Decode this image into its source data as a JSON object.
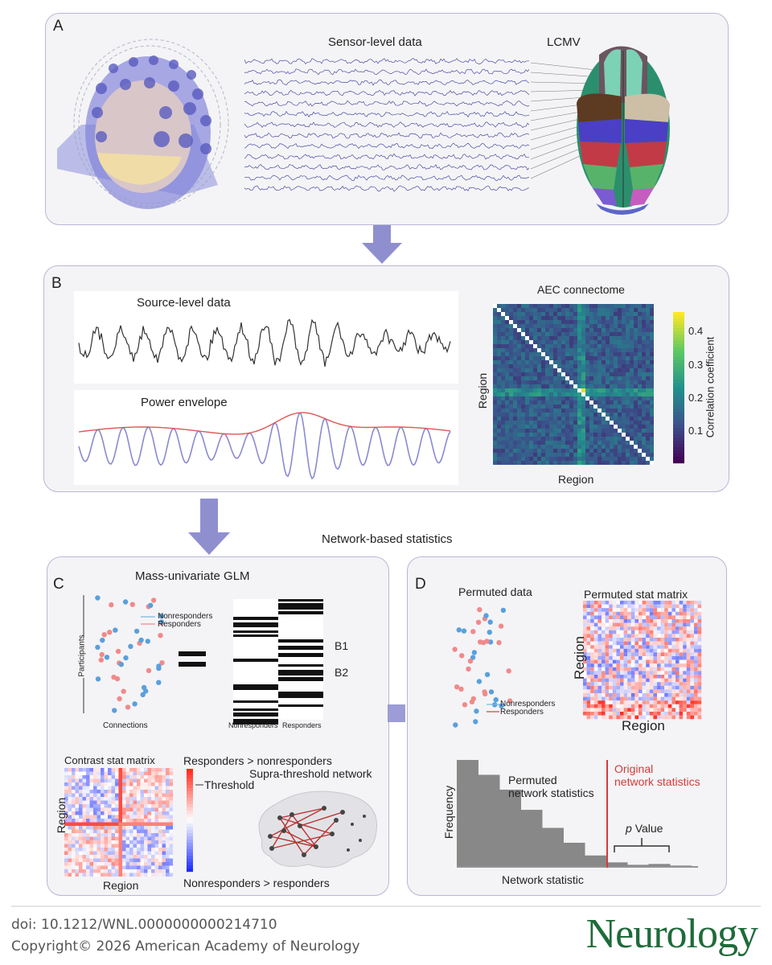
{
  "panel_a": {
    "label": "A",
    "sensor_title": "Sensor-level data",
    "lcmv_title": "LCMV"
  },
  "panel_b": {
    "label": "B",
    "source_title": "Source-level data",
    "envelope_title": "Power envelope",
    "matrix_title": "AEC connectome",
    "y_axis": "Region",
    "x_axis": "Region",
    "colorbar_label": "Correlation coefficient",
    "colorbar_ticks": [
      "0.4",
      "0.3",
      "0.2",
      "0.1"
    ]
  },
  "section_title": "Network-based statistics",
  "panel_c": {
    "label": "C",
    "glm_title": "Mass-univariate GLM",
    "participants": "Participants",
    "connections": "Connections",
    "legend_nonresponders": "Nonresponders",
    "legend_responders": "Responders",
    "b1": "B1",
    "b2": "B2",
    "design_col1": "Nonresponders",
    "design_col2": "Responders",
    "contrast_title": "Contrast stat matrix",
    "contrast_y": "Region",
    "contrast_x": "Region",
    "resp_gt": "Responders > nonresponders",
    "threshold": "Threshold",
    "nonresp_gt": "Nonresponders > responders",
    "supra": "Supra-threshold network"
  },
  "panel_d": {
    "label": "D",
    "permuted_data": "Permuted data",
    "legend_nonresponders": "Nonresponders",
    "legend_responders": "Responders",
    "permuted_matrix": "Permuted stat matrix",
    "y_axis": "Region",
    "x_axis": "Region",
    "frequency": "Frequency",
    "permuted_stats_1": "Permuted",
    "permuted_stats_2": "network statistics",
    "original_1": "Original",
    "original_2": "network statistics",
    "pvalue_p": "p",
    "pvalue_v": "Value",
    "network_statistic": "Network statistic",
    "histogram_values": [
      10,
      8.6,
      7.2,
      5.3,
      3.6,
      2.2,
      1.0,
      0.35,
      0.12,
      0.2,
      0.05
    ]
  },
  "footer": {
    "doi": "doi: 10.1212/WNL.0000000000214710",
    "copyright": "Copyright© 2026 American Academy of Neurology",
    "logo": "Neurology"
  },
  "colors": {
    "panel_border": "#b9b6d6",
    "arrow": "#8f8fd0",
    "red": "#d63a3a",
    "blue_dot": "#5aa0dc",
    "pink_dot": "#f08a8a",
    "logo_green": "#1e6b3a"
  }
}
